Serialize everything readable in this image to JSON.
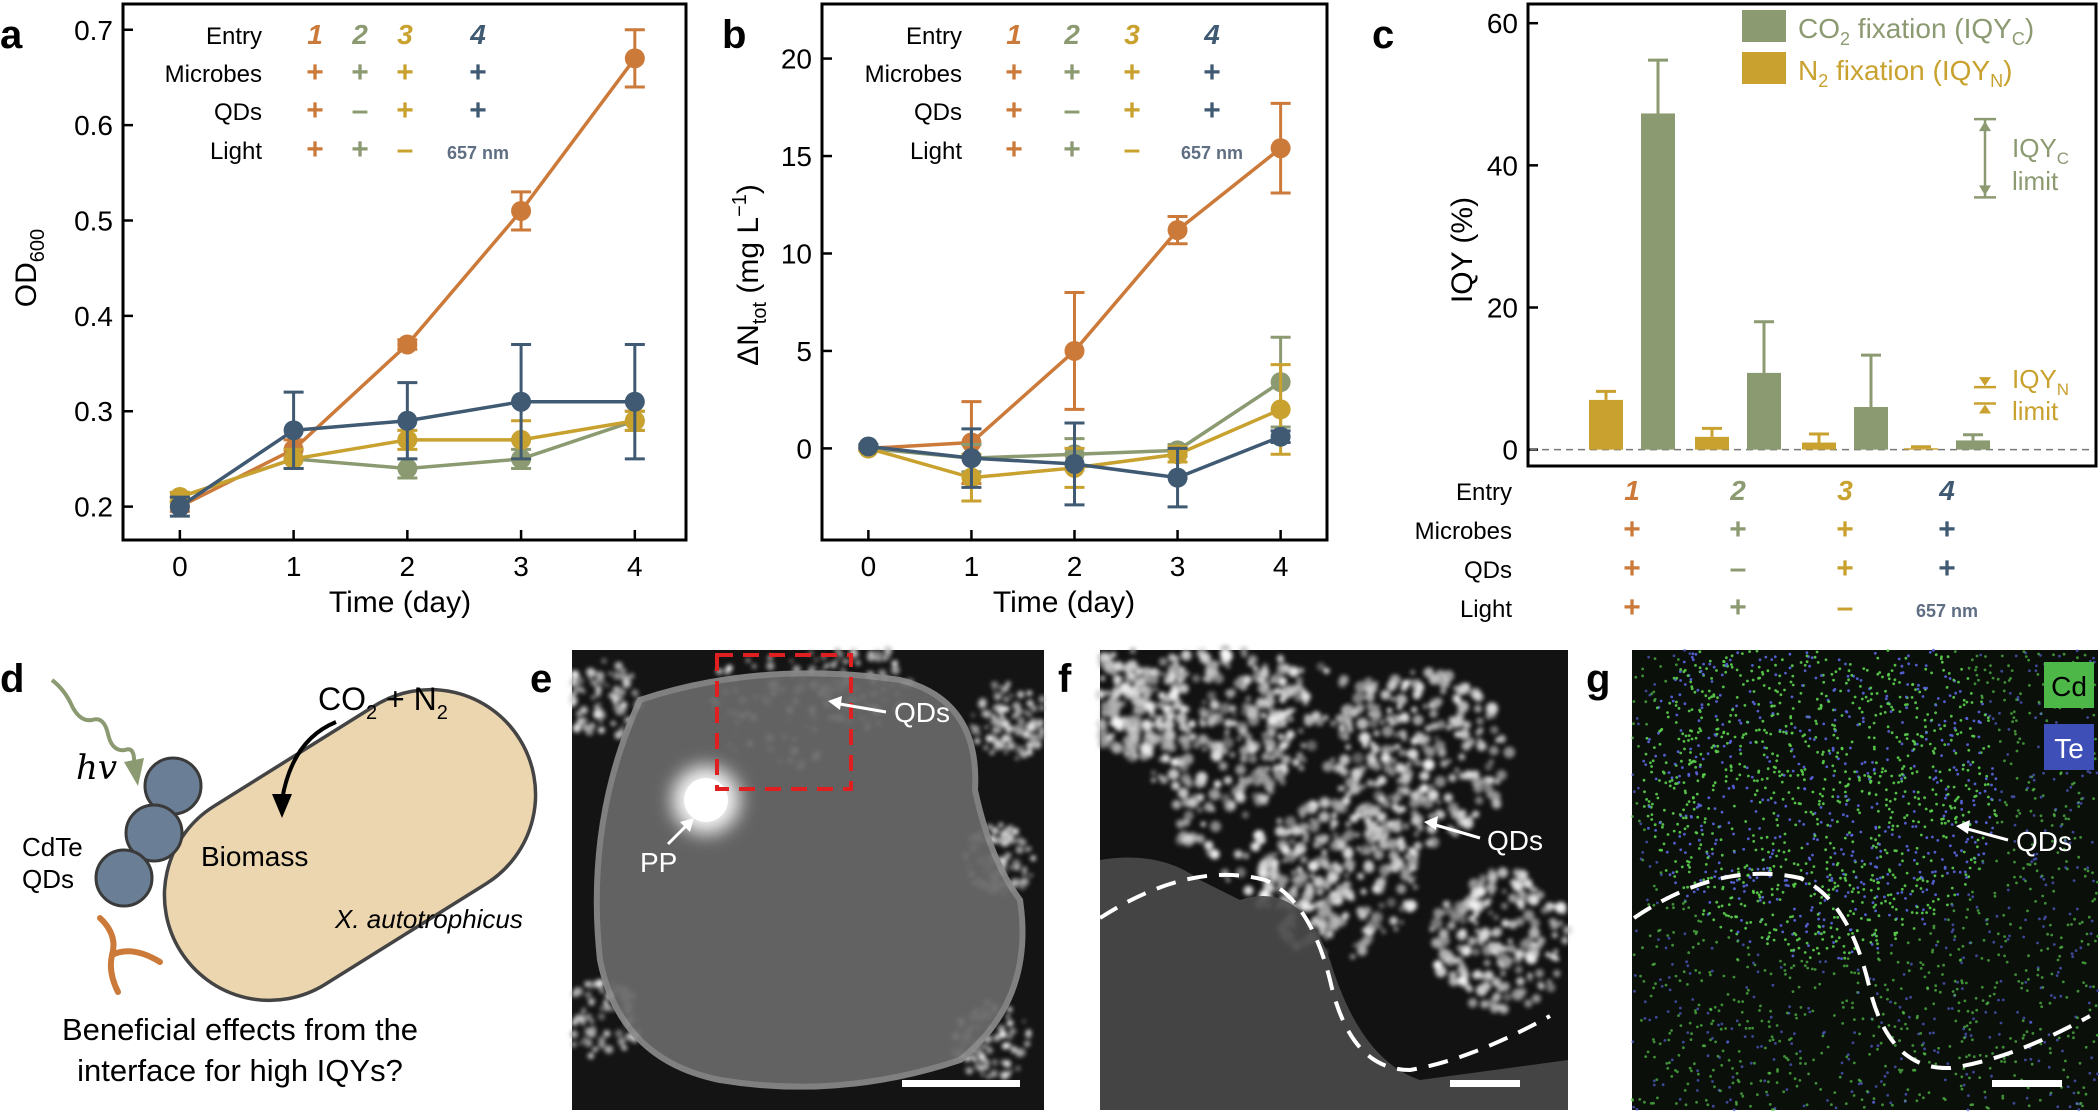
{
  "colors": {
    "e1": "#CC7A3A",
    "e2": "#8C9A72",
    "e3": "#C9A12E",
    "e4": "#3F5A72",
    "gray_text": "#5F6E82",
    "bar_c": "#8C9A72",
    "bar_n": "#C9A12E"
  },
  "legend_table": {
    "row_labels": [
      "Entry",
      "Microbes",
      "QDs",
      "Light"
    ],
    "entries": [
      {
        "entry": "1",
        "microbes": "+",
        "qds": "+",
        "light": "+"
      },
      {
        "entry": "2",
        "microbes": "+",
        "qds": "–",
        "light": "+"
      },
      {
        "entry": "3",
        "microbes": "+",
        "qds": "+",
        "light": "–"
      },
      {
        "entry": "4",
        "microbes": "+",
        "qds": "+",
        "light": "657 nm"
      }
    ]
  },
  "panels": {
    "a": {
      "label": "a"
    },
    "b": {
      "label": "b"
    },
    "c": {
      "label": "c"
    },
    "d": {
      "label": "d",
      "hv": "hv",
      "gas": "CO",
      "gas_sub": "2",
      "gas_mid": " + N",
      "gas_sub2": "2",
      "qd_label_1": "CdTe",
      "qd_label_2": "QDs",
      "cell_label": "Biomass",
      "species": "X. autotrophicus",
      "question_1": "Beneficial effects from the",
      "question_2": "interface for high IQYs?"
    },
    "e": {
      "label": "e",
      "qds": "QDs",
      "pp": "PP"
    },
    "f": {
      "label": "f",
      "qds": "QDs"
    },
    "g": {
      "label": "g",
      "qds": "QDs",
      "cd": "Cd",
      "te": "Te"
    }
  },
  "chart_data": [
    {
      "panel": "a",
      "type": "line",
      "xlabel": "Time (day)",
      "ylabel": "OD",
      "ylabel_sub": "600",
      "x": [
        0,
        1,
        2,
        3,
        4
      ],
      "xlim": [
        -0.5,
        4.45
      ],
      "ylim": [
        0.165,
        0.727
      ],
      "xticks": [
        0,
        1,
        2,
        3,
        4
      ],
      "yticks": [
        0.2,
        0.3,
        0.4,
        0.5,
        0.6,
        0.7
      ],
      "series": [
        {
          "entry": "1",
          "color": "#CC7A3A",
          "values": [
            0.2,
            0.26,
            0.37,
            0.51,
            0.67
          ],
          "errors": [
            0.005,
            0.01,
            0.005,
            0.02,
            0.03
          ]
        },
        {
          "entry": "2",
          "color": "#8C9A72",
          "values": [
            0.21,
            0.25,
            0.24,
            0.25,
            0.29
          ],
          "errors": [
            0.005,
            0.01,
            0.01,
            0.01,
            0.01
          ]
        },
        {
          "entry": "3",
          "color": "#C9A12E",
          "values": [
            0.21,
            0.25,
            0.27,
            0.27,
            0.29
          ],
          "errors": [
            0.005,
            0.01,
            0.01,
            0.02,
            0.01
          ]
        },
        {
          "entry": "4",
          "color": "#3F5A72",
          "values": [
            0.2,
            0.28,
            0.29,
            0.31,
            0.31
          ],
          "errors": [
            0.01,
            0.04,
            0.04,
            0.06,
            0.06
          ]
        }
      ]
    },
    {
      "panel": "b",
      "type": "line",
      "xlabel": "Time (day)",
      "ylabel": "ΔN",
      "ylabel_sub": "tot",
      "ylabel_unit": " (mg L",
      "ylabel_sup": "−1",
      "ylabel_end": ")",
      "x": [
        0,
        1,
        2,
        3,
        4
      ],
      "xlim": [
        -0.45,
        4.45
      ],
      "ylim": [
        -4.7,
        22.8
      ],
      "xticks": [
        0,
        1,
        2,
        3,
        4
      ],
      "yticks": [
        0,
        5,
        10,
        15,
        20
      ],
      "series": [
        {
          "entry": "1",
          "color": "#CC7A3A",
          "values": [
            0.0,
            0.3,
            5.0,
            11.2,
            15.4
          ],
          "errors": [
            0.1,
            2.1,
            3.0,
            0.7,
            2.3
          ]
        },
        {
          "entry": "2",
          "color": "#8C9A72",
          "values": [
            0.0,
            -0.5,
            -0.3,
            -0.1,
            3.4
          ],
          "errors": [
            0.1,
            0.7,
            0.8,
            0.3,
            2.3
          ]
        },
        {
          "entry": "3",
          "color": "#C9A12E",
          "values": [
            0.0,
            -1.5,
            -1.0,
            -0.3,
            2.0
          ],
          "errors": [
            0.1,
            1.2,
            1.0,
            0.4,
            2.3
          ]
        },
        {
          "entry": "4",
          "color": "#3F5A72",
          "values": [
            0.1,
            -0.5,
            -0.8,
            -1.5,
            0.6
          ],
          "errors": [
            0.1,
            1.5,
            2.1,
            1.5,
            0.3
          ]
        }
      ]
    },
    {
      "panel": "c",
      "type": "bar",
      "ylabel": "IQY (%)",
      "ylim": [
        -2.3,
        62.7
      ],
      "yticks": [
        0,
        20,
        40,
        60
      ],
      "categories": [
        "1",
        "2",
        "3",
        "4"
      ],
      "series": [
        {
          "name": "N",
          "name_sub": "2",
          "name_rest": " fixation (IQY",
          "name_sub2": "N",
          "name_end": ")",
          "color": "#C9A12E",
          "values": [
            7.0,
            1.8,
            1.0,
            0.2
          ],
          "errors": [
            1.2,
            1.2,
            1.2,
            0.2
          ]
        },
        {
          "name": "CO",
          "name_sub": "2",
          "name_rest": " fixation (IQY",
          "name_sub2": "C",
          "name_end": ")",
          "color": "#8C9A72",
          "values": [
            47.3,
            10.8,
            6.0,
            1.3
          ],
          "errors": [
            7.5,
            7.2,
            7.3,
            0.8
          ]
        }
      ],
      "annotations": {
        "iqyc": {
          "main": "IQY",
          "sub": "C",
          "line2": "limit",
          "low": 35.5,
          "high": 46.5
        },
        "iqyn": {
          "main": "IQY",
          "sub": "N",
          "line2": "limit",
          "low": 6.5,
          "high": 8.8
        }
      }
    }
  ]
}
